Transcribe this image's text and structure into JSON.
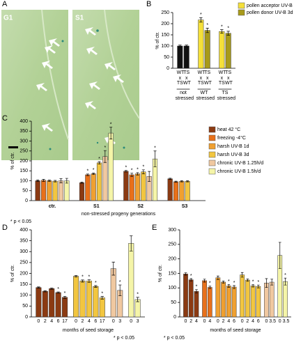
{
  "photo_panel": {
    "label": "A",
    "images": [
      "G1",
      "S1"
    ]
  },
  "chart_data": [
    {
      "type": "bar_groups",
      "panel_label": "B",
      "y_label": "% of ctr.",
      "ylim": [
        0,
        250
      ],
      "yticks": [
        0,
        50,
        100,
        150,
        200,
        250
      ],
      "sig_marker": "*",
      "legend": [
        {
          "name": "pollen acceptor UV-B 3d",
          "color": "#f5e03a"
        },
        {
          "name": "pollen donor UV-B 3d",
          "color": "#a89a1a"
        }
      ],
      "groups": [
        {
          "label": "not stressed",
          "categories": [
            "WT x TS",
            "TS x WT"
          ],
          "values": [
            100,
            100
          ],
          "errors": [
            4,
            4
          ],
          "colors": [
            "#111111",
            "#111111"
          ],
          "sig": [
            false,
            false
          ]
        },
        {
          "label": "WT stressed",
          "categories": [
            "WT x TS",
            "TS x WT"
          ],
          "values": [
            217,
            170
          ],
          "errors": [
            10,
            10
          ],
          "colors": [
            "#f5e03a",
            "#a89a1a"
          ],
          "sig": [
            true,
            true
          ]
        },
        {
          "label": "TS stressed",
          "categories": [
            "WT x TS",
            "TS x WT"
          ],
          "values": [
            165,
            157
          ],
          "errors": [
            8,
            9
          ],
          "colors": [
            "#f5e03a",
            "#a89a1a"
          ],
          "sig": [
            true,
            true
          ]
        }
      ]
    },
    {
      "type": "grouped_bar",
      "panel_label": "C",
      "y_label": "% of ctr.",
      "x_label": "non-stressed progeny generations",
      "footnote": "* p < 0.05",
      "ylim": [
        0,
        400
      ],
      "yticks": [
        0,
        50,
        100,
        150,
        200,
        250,
        300,
        350,
        400
      ],
      "sig_marker": "*",
      "categories": [
        "ctr.",
        "S1",
        "S2",
        "S3"
      ],
      "series": [
        {
          "name": "heat 42 °C",
          "color": "#8b3a12",
          "values": [
            100,
            90,
            148,
            110
          ],
          "errors": [
            4,
            3,
            4,
            3
          ],
          "sig": [
            false,
            false,
            true,
            false
          ]
        },
        {
          "name": "freezing -4°C",
          "color": "#e8701a",
          "values": [
            102,
            130,
            130,
            95
          ],
          "errors": [
            5,
            4,
            8,
            3
          ],
          "sig": [
            false,
            true,
            true,
            false
          ]
        },
        {
          "name": "harsh UV-B 1d",
          "color": "#f0a030",
          "values": [
            100,
            135,
            135,
            97
          ],
          "errors": [
            3,
            4,
            6,
            3
          ],
          "sig": [
            false,
            true,
            true,
            false
          ]
        },
        {
          "name": "harsh UV-B 3d",
          "color": "#f2c640",
          "values": [
            98,
            190,
            145,
            97
          ],
          "errors": [
            4,
            6,
            10,
            3
          ],
          "sig": [
            false,
            true,
            true,
            false
          ]
        },
        {
          "name": "chronic UV-B 1.25h/d",
          "color": "#f0c8a0",
          "values": [
            100,
            222,
            122,
            null
          ],
          "errors": [
            10,
            30,
            25,
            null
          ],
          "sig": [
            false,
            true,
            false,
            false
          ]
        },
        {
          "name": "chronic UV-B 1.5h/d",
          "color": "#f5f5a8",
          "values": [
            100,
            340,
            210,
            null
          ],
          "errors": [
            12,
            30,
            40,
            null
          ],
          "sig": [
            false,
            true,
            true,
            false
          ]
        }
      ]
    },
    {
      "type": "bar_groups",
      "panel_label": "D",
      "y_label": "% of ctr.",
      "x_label": "months of seed storage",
      "footnote": "* p < 0.05",
      "ylim": [
        0,
        400
      ],
      "yticks": [
        0,
        50,
        100,
        150,
        200,
        250,
        300,
        350,
        400
      ],
      "sig_marker": "*",
      "groups": [
        {
          "color": "#8b3a12",
          "categories": [
            "0",
            "2",
            "4",
            "6",
            "17"
          ],
          "values": [
            135,
            118,
            130,
            112,
            90
          ],
          "errors": [
            3,
            3,
            3,
            3,
            5
          ],
          "sig": [
            false,
            false,
            false,
            true,
            true
          ]
        },
        {
          "color": "#f2c640",
          "categories": [
            "0",
            "2",
            "4",
            "6",
            "17"
          ],
          "values": [
            187,
            165,
            165,
            140,
            88
          ],
          "errors": [
            4,
            5,
            6,
            4,
            6
          ],
          "sig": [
            false,
            true,
            true,
            true,
            true
          ]
        },
        {
          "color": "#f0c8a0",
          "categories": [
            "0",
            "3"
          ],
          "values": [
            222,
            122
          ],
          "errors": [
            30,
            25
          ],
          "sig": [
            false,
            true
          ]
        },
        {
          "color": "#f5f5a8",
          "categories": [
            "0",
            "3"
          ],
          "values": [
            338,
            80
          ],
          "errors": [
            35,
            10
          ],
          "sig": [
            false,
            true
          ]
        }
      ]
    },
    {
      "type": "bar_groups",
      "panel_label": "E",
      "y_label": "% of ctr.",
      "x_label": "months of seed storage",
      "footnote": "* p < 0.05",
      "ylim": [
        0,
        300
      ],
      "yticks": [
        0,
        50,
        100,
        150,
        200,
        250,
        300
      ],
      "sig_marker": "*",
      "groups": [
        {
          "color": "#8b3a12",
          "categories": [
            "0",
            "2",
            "4"
          ],
          "values": [
            148,
            128,
            88
          ],
          "errors": [
            4,
            4,
            6
          ],
          "sig": [
            false,
            true,
            true
          ]
        },
        {
          "color": "#e8701a",
          "categories": [
            "0",
            "4"
          ],
          "values": [
            125,
            102
          ],
          "errors": [
            5,
            4
          ],
          "sig": [
            false,
            true
          ]
        },
        {
          "color": "#f0a030",
          "categories": [
            "0",
            "2",
            "4",
            "6"
          ],
          "values": [
            135,
            120,
            107,
            103
          ],
          "errors": [
            6,
            4,
            5,
            5
          ],
          "sig": [
            false,
            false,
            true,
            true
          ]
        },
        {
          "color": "#f2c640",
          "categories": [
            "0",
            "2",
            "4",
            "6"
          ],
          "values": [
            145,
            127,
            107,
            105
          ],
          "errors": [
            8,
            4,
            4,
            5
          ],
          "sig": [
            false,
            false,
            true,
            true
          ]
        },
        {
          "color": "#f0c8a0",
          "categories": [
            "0",
            "3.5"
          ],
          "values": [
            117,
            120
          ],
          "errors": [
            15,
            10
          ],
          "sig": [
            false,
            false
          ]
        },
        {
          "color": "#f5f5a8",
          "categories": [
            "0",
            "3.5"
          ],
          "values": [
            212,
            122
          ],
          "errors": [
            45,
            12
          ],
          "sig": [
            false,
            true
          ]
        }
      ]
    }
  ]
}
